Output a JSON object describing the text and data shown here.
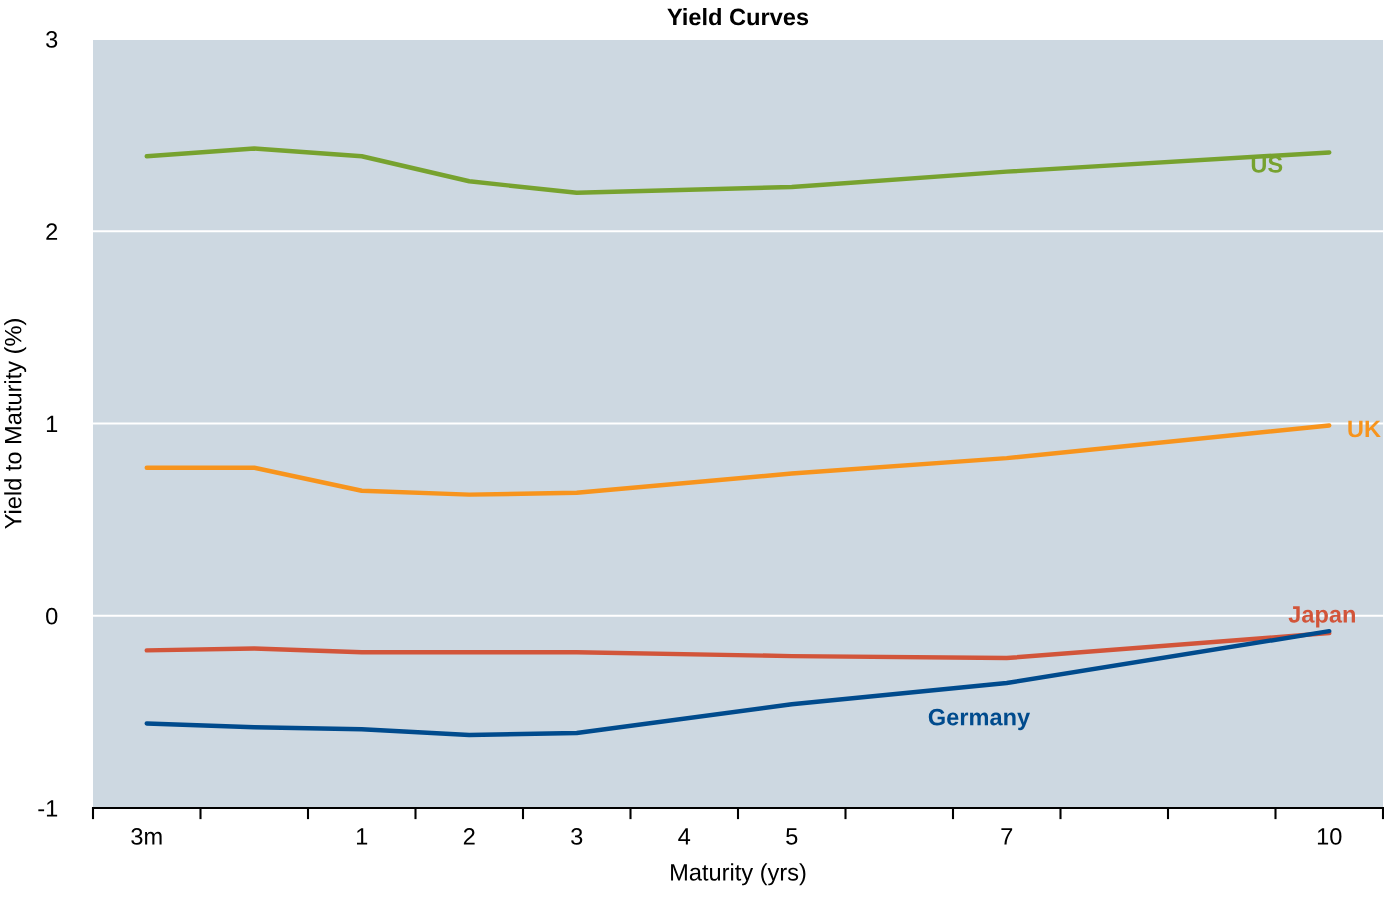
{
  "chart_data": {
    "type": "line",
    "title": "Yield Curves",
    "xlabel": "Maturity (yrs)",
    "ylabel": "Yield to Maturity (%)",
    "categories": [
      "3m",
      null,
      "1",
      "2",
      "3",
      "4",
      "5",
      null,
      "7",
      null,
      null,
      "10"
    ],
    "series": [
      {
        "name": "US",
        "color": "#77a22f",
        "values": [
          2.39,
          2.43,
          2.39,
          2.26,
          2.2,
          null,
          2.23,
          null,
          2.31,
          null,
          null,
          2.41
        ]
      },
      {
        "name": "UK",
        "color": "#f7941d",
        "values": [
          0.77,
          0.77,
          0.65,
          0.63,
          0.64,
          null,
          0.74,
          null,
          0.82,
          null,
          null,
          0.99
        ]
      },
      {
        "name": "Japan",
        "color": "#d2553a",
        "values": [
          -0.18,
          -0.17,
          -0.19,
          -0.19,
          -0.19,
          null,
          -0.21,
          null,
          -0.22,
          null,
          null,
          -0.09
        ]
      },
      {
        "name": "Germany",
        "color": "#004b8d",
        "values": [
          -0.56,
          -0.58,
          -0.59,
          -0.62,
          -0.61,
          null,
          -0.46,
          null,
          -0.35,
          null,
          null,
          -0.08
        ]
      }
    ],
    "ylim": [
      -1,
      3
    ],
    "yticks": [
      -1,
      0,
      1,
      2,
      3
    ],
    "grid": "y",
    "legend": false
  }
}
